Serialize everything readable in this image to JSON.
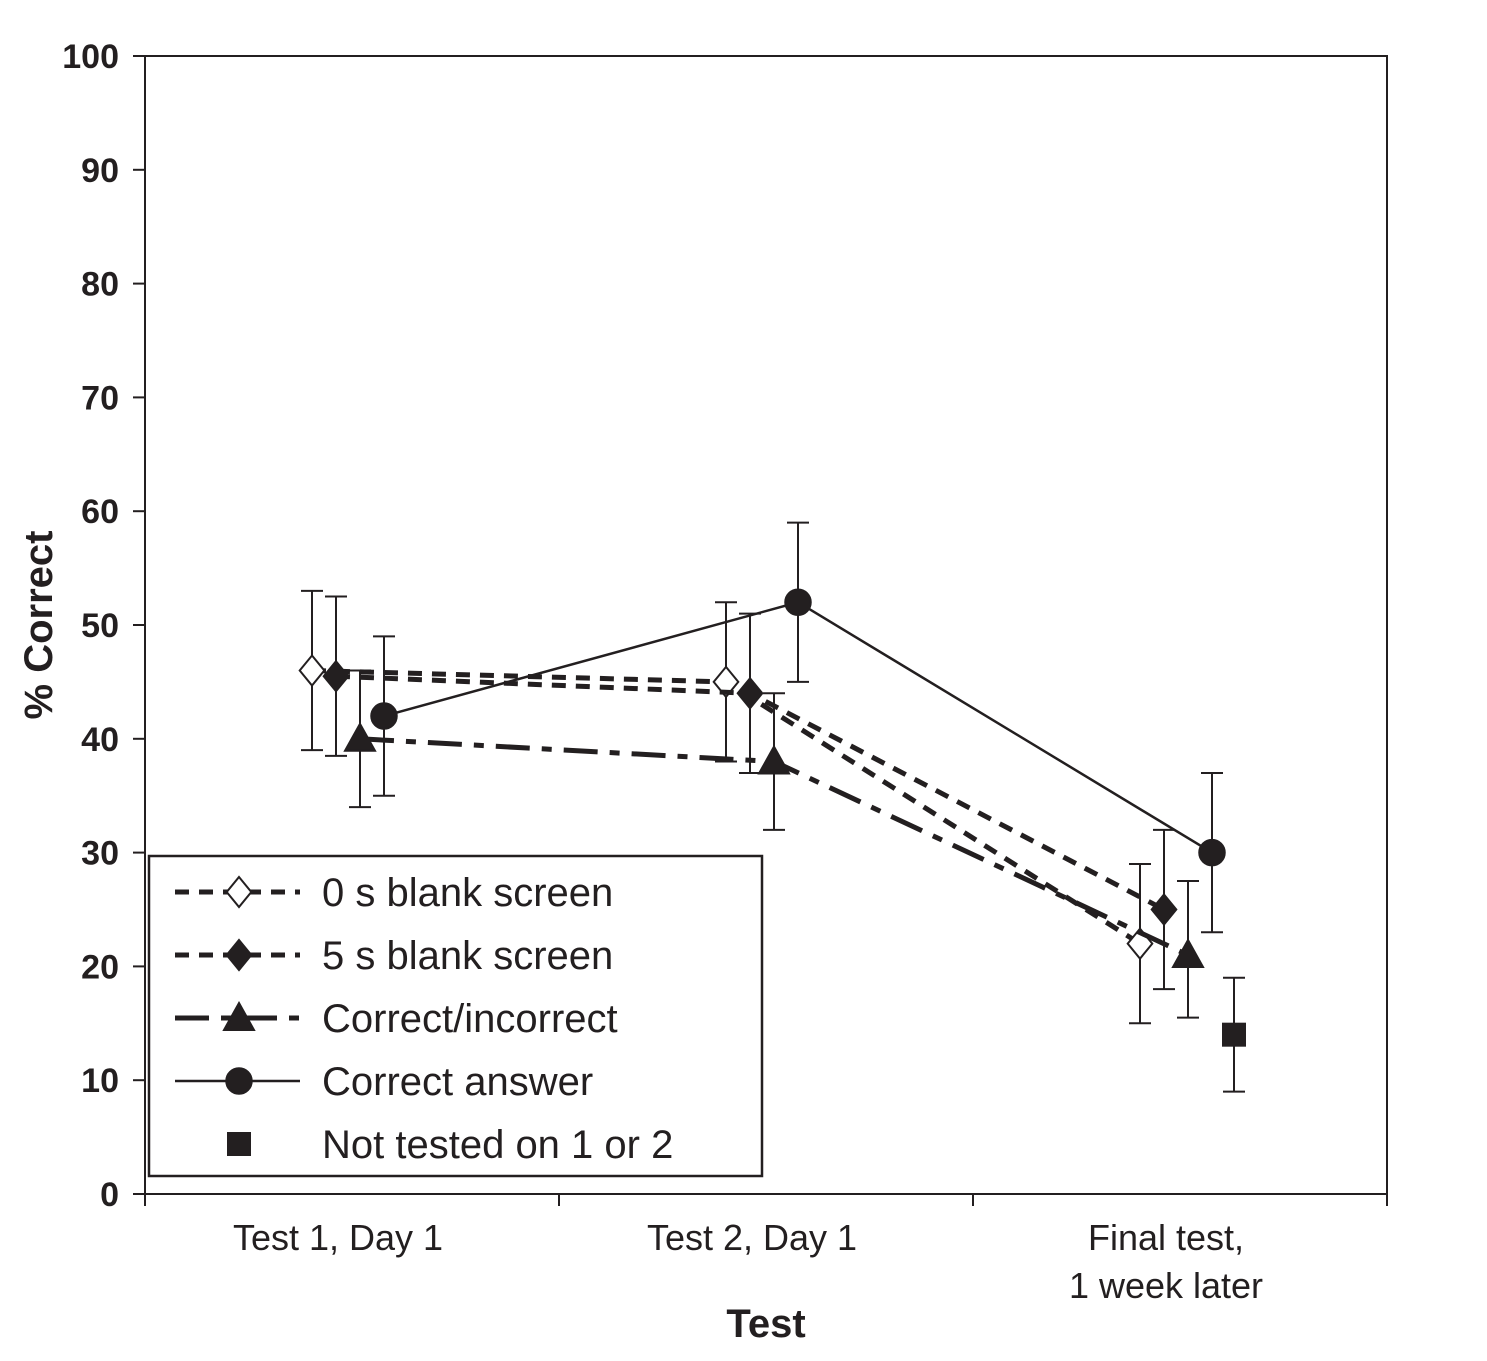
{
  "chart_data": {
    "type": "line",
    "title": "",
    "xlabel": "Test",
    "ylabel": "% Correct",
    "ylim": [
      0,
      100
    ],
    "yticks": [
      0,
      10,
      20,
      30,
      40,
      50,
      60,
      70,
      80,
      90,
      100
    ],
    "categories": [
      [
        "Test 1, Day 1"
      ],
      [
        "Test 2, Day 1"
      ],
      [
        "Final test,",
        "1 week later"
      ]
    ],
    "grid": false,
    "legend_position": "bottom-left",
    "series": [
      {
        "name": "0 s blank screen",
        "marker": "diamond-open",
        "line": "short-dash",
        "values": [
          46,
          45,
          22
        ],
        "error": [
          [
            39,
            53
          ],
          [
            38,
            52
          ],
          [
            15,
            29
          ]
        ]
      },
      {
        "name": "5 s blank screen",
        "marker": "diamond-filled",
        "line": "short-dash",
        "values": [
          45.5,
          44,
          25
        ],
        "error": [
          [
            38.5,
            52.5
          ],
          [
            37,
            51
          ],
          [
            18,
            32
          ]
        ]
      },
      {
        "name": "Correct/incorrect",
        "marker": "triangle-filled",
        "line": "long-dash",
        "values": [
          40,
          38,
          21
        ],
        "error": [
          [
            34,
            46
          ],
          [
            32,
            44
          ],
          [
            15.5,
            27.5
          ]
        ]
      },
      {
        "name": "Correct answer",
        "marker": "circle-filled",
        "line": "solid",
        "values": [
          42,
          52,
          30
        ],
        "error": [
          [
            35,
            49
          ],
          [
            45,
            59
          ],
          [
            23,
            37
          ]
        ]
      },
      {
        "name": "Not tested on 1 or 2",
        "marker": "square-filled",
        "line": "none",
        "values": [
          null,
          null,
          14
        ],
        "error": [
          null,
          null,
          [
            9,
            19
          ]
        ]
      }
    ]
  }
}
